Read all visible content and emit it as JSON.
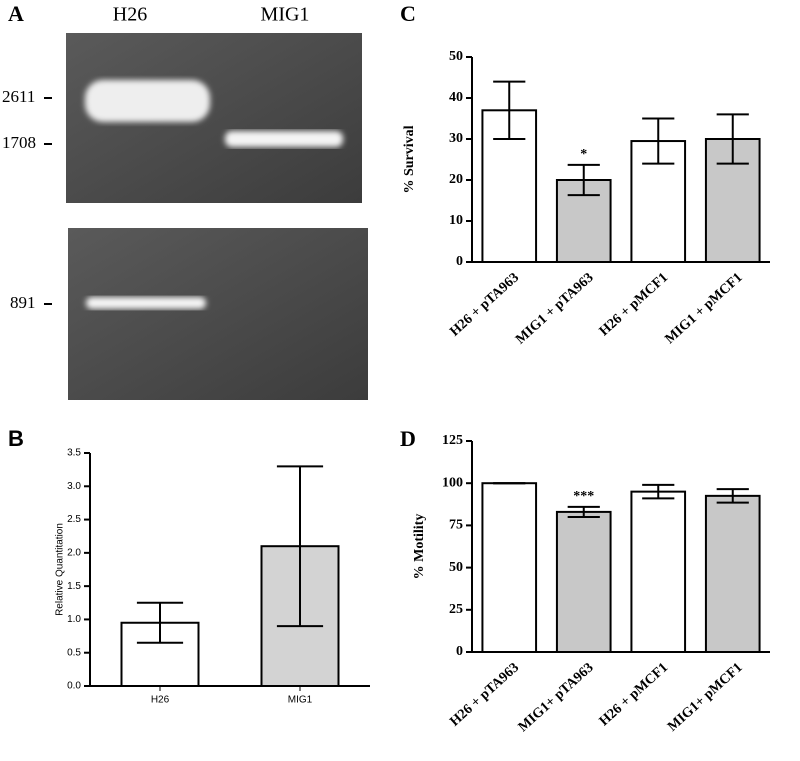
{
  "panel_a": {
    "label": "A",
    "lanes": [
      "H26",
      "MIG1"
    ],
    "markers": [
      2611,
      1708,
      891
    ]
  },
  "chart_data": [
    {
      "type": "bar",
      "panel": "B",
      "ylabel": "Relative Quantitation",
      "categories": [
        "H26",
        "MIG1"
      ],
      "values": [
        0.95,
        2.1
      ],
      "errors": [
        0.3,
        1.2
      ],
      "colors": [
        "#ffffff",
        "#d3d3d3"
      ],
      "ylim": [
        0,
        3.5
      ],
      "yticks": [
        {
          "value": 0,
          "label": "0.0"
        },
        0.5,
        {
          "value": 1,
          "label": "1.0"
        },
        1.5,
        {
          "value": 2,
          "label": "2.0"
        },
        2.5,
        {
          "value": 3,
          "label": "3.0"
        },
        3.5
      ]
    },
    {
      "type": "bar",
      "panel": "C",
      "ylabel": "% Survival",
      "categories": [
        "H26 + pTA963",
        "MIG1 + pTA963",
        "H26 + pMCF1",
        "MIG1 + pMCF1"
      ],
      "values": [
        37,
        20,
        29.5,
        30
      ],
      "errors": [
        7,
        3.7,
        5.5,
        6
      ],
      "colors": [
        "#ffffff",
        "#c8c8c8",
        "#ffffff",
        "#c8c8c8"
      ],
      "annotations": [
        null,
        "*",
        null,
        null
      ],
      "ylim": [
        0,
        50
      ],
      "yticks": [
        0,
        10,
        20,
        30,
        40,
        50
      ]
    },
    {
      "type": "bar",
      "panel": "D",
      "ylabel": "% Motility",
      "categories": [
        "H26 + pTA963",
        "MIG1+ pTA963",
        "H26 + pMCF1",
        "MIG1+ pMCF1"
      ],
      "values": [
        100,
        83,
        95,
        92.5
      ],
      "errors": [
        0,
        3,
        4,
        4
      ],
      "colors": [
        "#ffffff",
        "#c8c8c8",
        "#ffffff",
        "#c8c8c8"
      ],
      "annotations": [
        null,
        "***",
        null,
        null
      ],
      "ylim": [
        0,
        125
      ],
      "yticks": [
        0,
        25,
        50,
        75,
        100,
        125
      ]
    }
  ]
}
